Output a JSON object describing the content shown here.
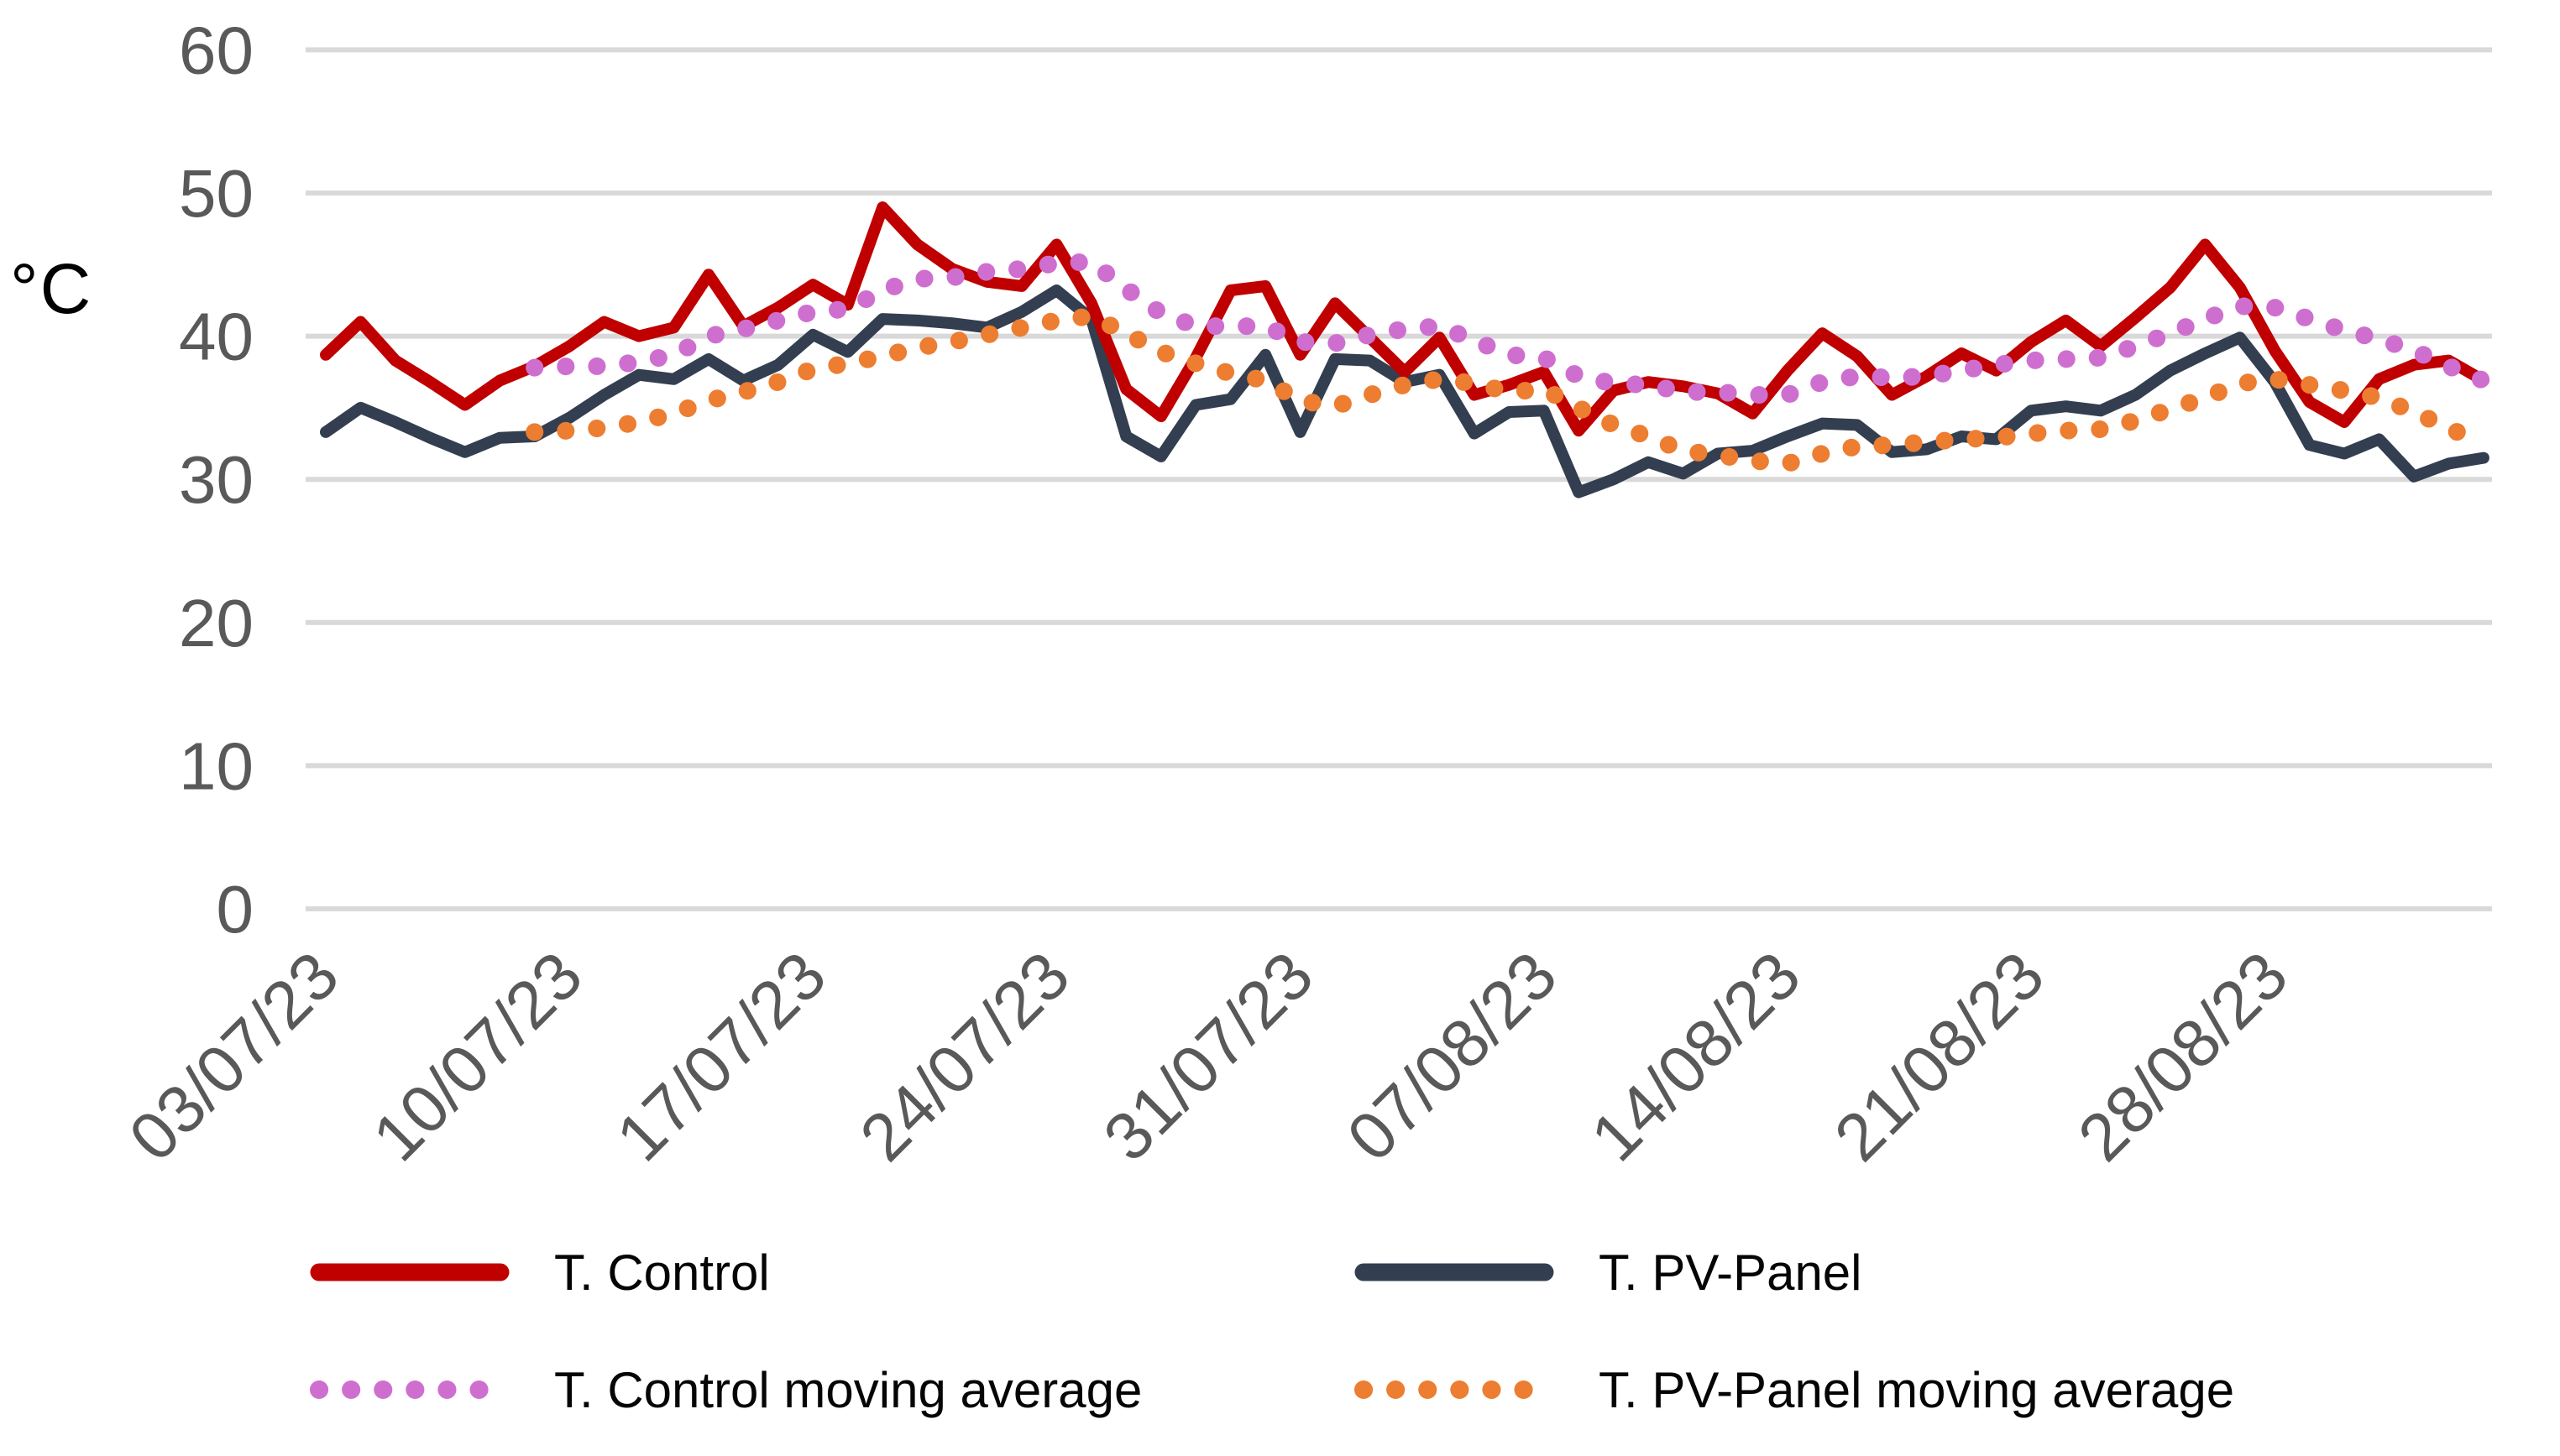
{
  "chart_data": {
    "type": "line",
    "title": "",
    "xlabel": "",
    "ylabel": "°C",
    "ylim": [
      0,
      60
    ],
    "yticks": [
      0,
      10,
      20,
      30,
      40,
      50,
      60
    ],
    "grid": "horizontal-only",
    "legend_position": "bottom",
    "x_unit": "day",
    "x_range_start": "03/07/23",
    "x_range_end": "03/09/23",
    "n_points": 63,
    "x_tick_labels": [
      "03/07/23",
      "10/07/23",
      "17/07/23",
      "24/07/23",
      "31/07/23",
      "07/08/23",
      "14/08/23",
      "21/08/23",
      "28/08/23"
    ],
    "x_tick_day_indices": [
      0,
      7,
      14,
      21,
      28,
      35,
      42,
      49,
      56
    ],
    "x_tick_rotation_deg": -45,
    "series": [
      {
        "name": "T. Control",
        "color": "#c00000",
        "style": "solid",
        "start_day": 0,
        "values": [
          38.7,
          41,
          38.3,
          36.8,
          35.2,
          36.9,
          37.9,
          39.3,
          41,
          40,
          40.6,
          44.3,
          40.7,
          42,
          43.6,
          42.2,
          49,
          46.4,
          44.7,
          43.8,
          43.5,
          46.4,
          42.3,
          36.3,
          34.4,
          38.5,
          43.2,
          43.5,
          38.7,
          42.3,
          39.9,
          37.5,
          39.9,
          35.9,
          36.6,
          37.5,
          33.4,
          36.2,
          36.8,
          36.5,
          36,
          34.6,
          37.6,
          40.2,
          38.6,
          35.9,
          37.2,
          38.8,
          37.6,
          39.6,
          41.1,
          39.3,
          41.3,
          43.4,
          46.4,
          43.4,
          39,
          35.4,
          34,
          37,
          38,
          38.3,
          36.9
        ]
      },
      {
        "name": "T. PV-Panel",
        "color": "#333f50",
        "style": "solid",
        "start_day": 0,
        "values": [
          33.3,
          35,
          34,
          32.9,
          31.9,
          32.9,
          33,
          34.3,
          35.9,
          37.3,
          37,
          38.4,
          36.9,
          38,
          40.1,
          38.9,
          41.2,
          41.1,
          40.9,
          40.6,
          41.7,
          43.2,
          41.2,
          33,
          31.6,
          35.2,
          35.6,
          38.7,
          33.3,
          38.4,
          38.3,
          36.8,
          37.3,
          33.2,
          34.7,
          34.8,
          29.1,
          30,
          31.2,
          30.4,
          31.8,
          32,
          33,
          33.9,
          33.8,
          31.9,
          32.1,
          33,
          32.8,
          34.8,
          35.1,
          34.8,
          35.9,
          37.6,
          38.8,
          39.9,
          36.8,
          32.4,
          31.8,
          32.8,
          30.2,
          31.1,
          31.5
        ]
      },
      {
        "name": "T. Control moving average",
        "color": "#ce6fd0",
        "style": "dotted",
        "moving_average_window": 7,
        "start_day": 6,
        "values": [
          37.8,
          37.9,
          37.9,
          38.2,
          38.7,
          40,
          40.5,
          41.1,
          41.7,
          41.9,
          43.2,
          44,
          44.1,
          44.5,
          44.7,
          45.1,
          45.2,
          43.3,
          41.6,
          40.7,
          40.7,
          40.7,
          39.6,
          39.5,
          40.1,
          40.5,
          40.7,
          39.7,
          38.7,
          38.5,
          37.2,
          36.7,
          36.6,
          36.1,
          36.1,
          35.9,
          35.9,
          36.8,
          37.2,
          37.1,
          37.2,
          37.6,
          38,
          38.3,
          38.4,
          38.5,
          39.3,
          40.2,
          41.2,
          42.1,
          42,
          41.2,
          40.4,
          39.8,
          39,
          37.9,
          36.9
        ]
      },
      {
        "name": "T. PV-Panel moving average",
        "color": "#ed7d31",
        "style": "dotted",
        "moving_average_window": 7,
        "start_day": 6,
        "values": [
          33.3,
          33.4,
          33.6,
          34,
          34.6,
          35.5,
          36.1,
          36.8,
          37.7,
          38.1,
          38.6,
          39.2,
          39.6,
          40.1,
          40.6,
          41.1,
          41.4,
          40.2,
          38.9,
          38.1,
          37.4,
          36.9,
          35.5,
          35.1,
          35.9,
          36.6,
          37,
          36.7,
          36.1,
          36.3,
          35,
          33.8,
          33,
          32,
          31.7,
          31.3,
          31.1,
          31.8,
          32.3,
          32.4,
          32.6,
          32.8,
          32.9,
          33.2,
          33.4,
          33.5,
          34.1,
          34.9,
          35.7,
          36.7,
          37,
          36.6,
          36.2,
          35.7,
          34.7,
          33.6,
          32.4
        ]
      }
    ],
    "style": {
      "gridline_color": "#d9d9d9",
      "tick_label_color": "#595959",
      "legend_text_color": "#050505",
      "background_color": "#ffffff"
    }
  }
}
